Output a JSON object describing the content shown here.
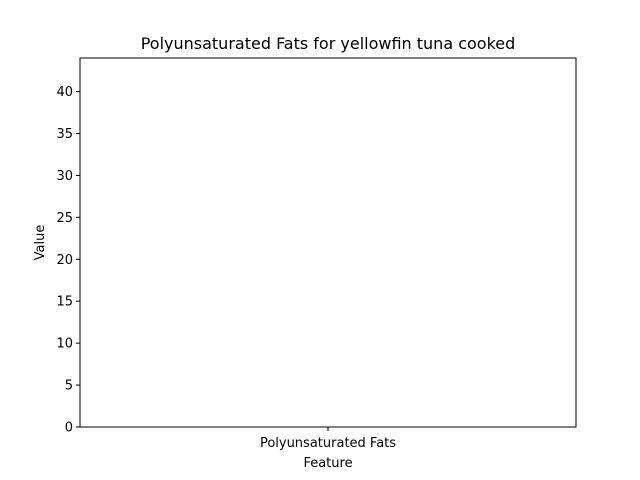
{
  "chart_data": {
    "type": "bar",
    "title": "Polyunsaturated Fats for yellowfin tuna cooked",
    "xlabel": "Feature",
    "ylabel": "Value",
    "categories": [
      "Polyunsaturated Fats"
    ],
    "values": [
      0
    ],
    "ylim": [
      0,
      44
    ],
    "yticks": [
      0,
      5,
      10,
      15,
      20,
      25,
      30,
      35,
      40
    ],
    "grid": false,
    "bar_color": "#1f77b4"
  }
}
